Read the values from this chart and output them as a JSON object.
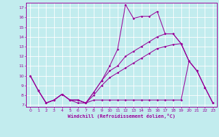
{
  "xlabel": "Windchill (Refroidissement éolien,°C)",
  "bg_color": "#c2ecee",
  "line_color": "#990099",
  "xlim": [
    -0.5,
    23.5
  ],
  "ylim": [
    6.8,
    17.5
  ],
  "xticks": [
    0,
    1,
    2,
    3,
    4,
    5,
    6,
    7,
    8,
    9,
    10,
    11,
    12,
    13,
    14,
    15,
    16,
    17,
    18,
    19,
    20,
    21,
    22,
    23
  ],
  "yticks": [
    7,
    8,
    9,
    10,
    11,
    12,
    13,
    14,
    15,
    16,
    17
  ],
  "grid_color": "#ffffff",
  "series1": {
    "x": [
      0,
      1,
      2,
      3,
      4,
      5,
      6,
      7,
      8,
      9,
      10,
      11,
      12,
      13,
      14,
      15,
      16,
      17,
      18,
      19,
      20
    ],
    "y": [
      10,
      8.5,
      7.2,
      7.5,
      8.1,
      7.5,
      7.2,
      7.2,
      8.3,
      9.5,
      11.0,
      12.7,
      17.3,
      15.9,
      16.1,
      16.1,
      16.6,
      14.3,
      14.3,
      13.3,
      11.5
    ]
  },
  "series2": {
    "x": [
      1,
      2,
      3,
      4,
      5,
      6,
      7,
      8,
      9,
      10,
      11,
      12,
      13,
      14,
      15,
      16,
      17,
      18,
      19,
      20,
      21,
      22,
      23
    ],
    "y": [
      8.5,
      7.2,
      7.5,
      8.1,
      7.5,
      7.5,
      7.2,
      7.5,
      7.5,
      7.5,
      7.5,
      7.5,
      7.5,
      7.5,
      7.5,
      7.5,
      7.5,
      7.5,
      7.5,
      11.5,
      10.5,
      8.8,
      7.2
    ]
  },
  "series3": {
    "x": [
      0,
      1,
      2,
      3,
      4,
      5,
      6,
      7,
      8,
      9,
      10,
      11,
      12,
      13,
      14,
      15,
      16,
      17,
      18,
      19,
      20,
      21,
      22,
      23
    ],
    "y": [
      10,
      8.5,
      7.2,
      7.5,
      8.1,
      7.5,
      7.5,
      7.2,
      8.0,
      9.0,
      9.8,
      10.3,
      10.8,
      11.3,
      11.8,
      12.3,
      12.8,
      13.0,
      13.2,
      13.3,
      11.5,
      10.5,
      8.8,
      7.2
    ]
  },
  "series4": {
    "x": [
      0,
      1,
      2,
      3,
      4,
      5,
      6,
      7,
      8,
      9,
      10,
      11,
      12,
      13,
      14,
      15,
      16,
      17,
      18,
      19,
      20,
      21,
      22,
      23
    ],
    "y": [
      10,
      8.5,
      7.2,
      7.5,
      8.1,
      7.5,
      7.5,
      7.2,
      8.3,
      9.5,
      10.5,
      11.0,
      12.0,
      12.5,
      13.0,
      13.5,
      14.0,
      14.3,
      14.3,
      13.3,
      11.5,
      10.5,
      8.8,
      7.2
    ]
  }
}
